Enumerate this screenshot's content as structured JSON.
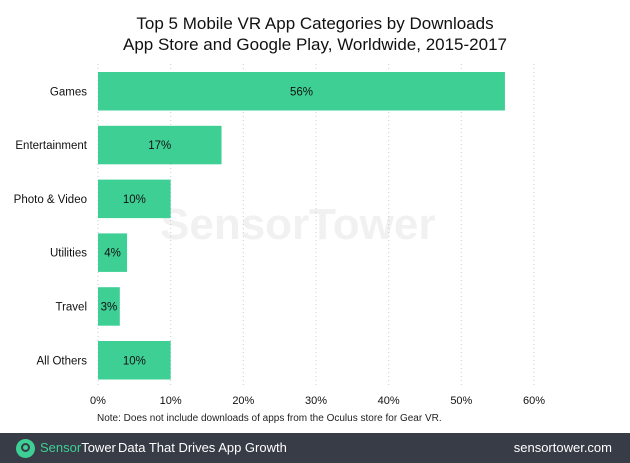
{
  "chart_data": {
    "type": "bar",
    "orientation": "horizontal",
    "title": "Top 5 Mobile VR App Categories by Downloads",
    "subtitle": "App Store and Google Play, Worldwide, 2015-2017",
    "categories": [
      "Games",
      "Entertainment",
      "Photo & Video",
      "Utilities",
      "Travel",
      "All Others"
    ],
    "values": [
      56,
      17,
      10,
      4,
      3,
      10
    ],
    "data_labels": [
      "56%",
      "17%",
      "10%",
      "4%",
      "3%",
      "10%"
    ],
    "xlim": [
      0,
      60
    ],
    "x_ticks": [
      "0%",
      "10%",
      "20%",
      "30%",
      "40%",
      "50%",
      "60%"
    ],
    "grid": "vertical dotted",
    "bar_color": "#3ecf95",
    "note": "Note: Does not include downloads of apps from the Oculus store for Gear VR."
  },
  "watermark": "SensorTower",
  "footer": {
    "brand_a": "Sensor",
    "brand_b": "Tower",
    "tagline": "Data That Drives App Growth",
    "url": "sensortower.com",
    "bg": "#373c46"
  }
}
